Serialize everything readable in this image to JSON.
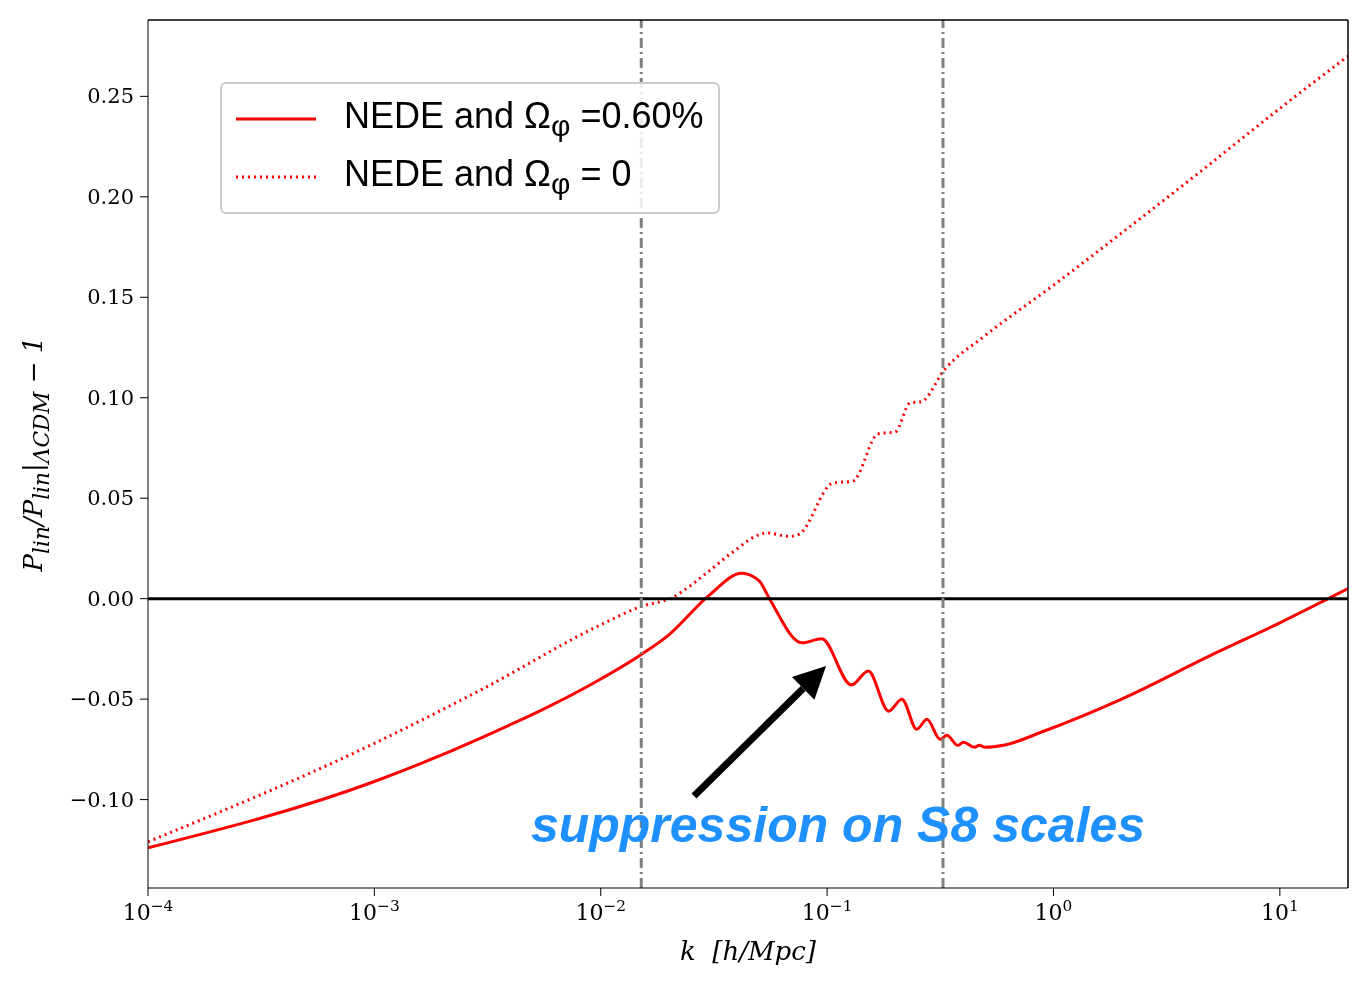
{
  "chart_data": {
    "type": "line",
    "xlabel": "k  [h/Mpc]",
    "ylabel": "P$_{lin}$/P$_{lin}$|$_{ΛCDM}$ − 1",
    "log": "x",
    "legend": "top left",
    "marker": "none",
    "xlim": [
      0.0001,
      20
    ],
    "ylim": [
      -0.144,
      0.288
    ],
    "xticks": [
      {
        "value": 0.0001,
        "label": "10$^{−4}$"
      },
      {
        "value": 0.001,
        "label": "10$^{−3}$"
      },
      {
        "value": 0.01,
        "label": "10$^{−2}$"
      },
      {
        "value": 0.1,
        "label": "10$^{−1}$"
      },
      {
        "value": 1,
        "label": "10$^{0}$"
      },
      {
        "value": 10,
        "label": "10$^{1}$"
      }
    ],
    "yticks": [
      {
        "value": -0.1,
        "label": "−0.10"
      },
      {
        "value": -0.05,
        "label": "−0.05"
      },
      {
        "value": 0,
        "label": "0.00"
      },
      {
        "value": 0.05,
        "label": "0.05"
      },
      {
        "value": 0.1,
        "label": "0.10"
      },
      {
        "value": 0.15,
        "label": "0.15"
      },
      {
        "value": 0.2,
        "label": "0.20"
      },
      {
        "value": 0.25,
        "label": "0.25"
      }
    ],
    "series": [
      {
        "name": "NEDE and Ω$_{φ}$ =0.60%",
        "color": "#ff0000",
        "line_style": "solid",
        "x": [
          0.0001,
          0.001,
          0.003,
          0.01,
          0.015,
          0.02,
          0.03,
          0.042,
          0.05,
          0.0556,
          0.0774,
          0.0946,
          0.128,
          0.152,
          0.187,
          0.214,
          0.249,
          0.276,
          0.316,
          0.338,
          0.378,
          0.4,
          0.448,
          0.47,
          0.5,
          0.6,
          0.905,
          2,
          5,
          10,
          20
        ],
        "values": [
          -0.124,
          -0.091,
          -0.069,
          -0.04,
          -0.028,
          -0.018,
          0.0015,
          0.0127,
          0.009,
          0,
          -0.022,
          -0.02,
          -0.043,
          -0.036,
          -0.056,
          -0.05,
          -0.065,
          -0.06,
          -0.07,
          -0.068,
          -0.073,
          -0.0715,
          -0.074,
          -0.073,
          -0.074,
          -0.073,
          -0.066,
          -0.05,
          -0.028,
          -0.012,
          0.005
        ]
      },
      {
        "name": "NEDE and Ω$_{φ}$ = 0",
        "color": "#ff0000",
        "line_style": "dotted",
        "x": [
          0.0001,
          0.001,
          0.003,
          0.01,
          0.015,
          0.0206,
          0.03,
          0.0375,
          0.0544,
          0.0678,
          0.075,
          0.106,
          0.13,
          0.168,
          0.2,
          0.233,
          0.26,
          0.33,
          0.5,
          1,
          2,
          5,
          10,
          20
        ],
        "values": [
          -0.121,
          -0.072,
          -0.045,
          -0.013,
          -0.004,
          0.0005,
          0.0136,
          0.0224,
          0.0327,
          0.031,
          0.032,
          0.0575,
          0.0585,
          0.082,
          0.083,
          0.0975,
          0.098,
          0.114,
          0.131,
          0.156,
          0.182,
          0.217,
          0.244,
          0.27
        ]
      }
    ],
    "ref_lines": [
      {
        "axis": "y",
        "value": 0,
        "color": "#000000",
        "line_style": "solid"
      },
      {
        "axis": "x",
        "value": 0.0151,
        "color": "#808080",
        "line_style": "dashdot"
      },
      {
        "axis": "x",
        "value": 0.325,
        "color": "#808080",
        "line_style": "dashdot"
      }
    ],
    "annotations": [
      "suppression on S8 scales"
    ]
  }
}
